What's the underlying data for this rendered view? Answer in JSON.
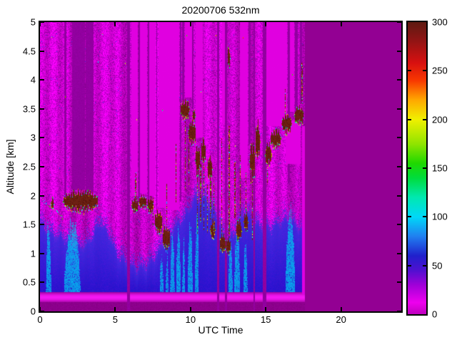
{
  "figure": {
    "background": "#ffffff"
  },
  "chart_data": {
    "type": "heatmap",
    "title": "20200706 532nm",
    "xlabel": "UTC Time",
    "ylabel": "Altitude [km]",
    "x_range": [
      0,
      24
    ],
    "x_ticks": [
      0,
      5,
      10,
      15,
      20
    ],
    "y_range": [
      0,
      5
    ],
    "y_ticks": [
      0,
      0.5,
      1,
      1.5,
      2,
      2.5,
      3,
      3.5,
      4,
      4.5,
      5
    ],
    "grid": false,
    "legend": "none",
    "colorbar": {
      "position": "right",
      "range": [
        0,
        300
      ],
      "ticks": [
        0,
        50,
        100,
        150,
        200,
        250,
        300
      ],
      "stops": [
        {
          "v": 0,
          "c": "#BE00BE"
        },
        {
          "v": 12,
          "c": "#EE00EE"
        },
        {
          "v": 30,
          "c": "#A000D8"
        },
        {
          "v": 45,
          "c": "#5010D0"
        },
        {
          "v": 60,
          "c": "#2020CC"
        },
        {
          "v": 80,
          "c": "#2080F0"
        },
        {
          "v": 100,
          "c": "#00D8F8"
        },
        {
          "v": 120,
          "c": "#00E8B0"
        },
        {
          "v": 140,
          "c": "#00DC3C"
        },
        {
          "v": 155,
          "c": "#20D800"
        },
        {
          "v": 175,
          "c": "#90E400"
        },
        {
          "v": 200,
          "c": "#F0F000"
        },
        {
          "v": 220,
          "c": "#FFA800"
        },
        {
          "v": 240,
          "c": "#F83800"
        },
        {
          "v": 258,
          "c": "#D81010"
        },
        {
          "v": 280,
          "c": "#941414"
        },
        {
          "v": 300,
          "c": "#5E1A12"
        }
      ]
    },
    "data_end_time": 17.58,
    "palette": {
      "no_data": "#930093",
      "noise_bright": "#E200E2",
      "noise_mid": "#C800D0",
      "noise_base": "#A400B0",
      "noise_dark": "#8E0098",
      "blue_speck": "#3C3CE6",
      "stripe_dark": "#9200A0",
      "stripe_bright": "#E000E0",
      "surface_dark": "#8C008C",
      "surface_bright": "#F516F5",
      "aerosol_deep": "#2010CC",
      "aerosol_mid": "#3C28DE",
      "aerosol_violet": "#8824DC",
      "plume_cyan": "#00C2F2",
      "cloud_main": "#6E2012",
      "cloud_dark": "#58160C",
      "edge_colors": [
        "#00E6FF",
        "#2BE000",
        "#CCF400",
        "#FFD800",
        "#FF5800",
        "#2A52FF",
        "#EE1000"
      ]
    },
    "surface_band": {
      "dark_top_km": 0.155,
      "bright_peak_km": 0.24,
      "band_top_km": 0.33
    },
    "aerosol_top_km": [
      [
        0,
        1.95
      ],
      [
        0.8,
        1.8
      ],
      [
        1.6,
        1.62
      ],
      [
        2.4,
        1.55
      ],
      [
        3.2,
        1.62
      ],
      [
        4.0,
        1.9
      ],
      [
        4.6,
        1.7
      ],
      [
        5.2,
        1.45
      ],
      [
        5.8,
        1.25
      ],
      [
        6.4,
        1.1
      ],
      [
        7.0,
        1.2
      ],
      [
        7.8,
        1.45
      ],
      [
        8.6,
        1.7
      ],
      [
        9.4,
        2.0
      ],
      [
        10.2,
        2.35
      ],
      [
        11.0,
        2.3
      ],
      [
        11.8,
        2.05
      ],
      [
        12.4,
        1.6
      ],
      [
        13.0,
        1.75
      ],
      [
        13.6,
        2.1
      ],
      [
        14.2,
        2.0
      ],
      [
        14.8,
        1.9
      ],
      [
        15.4,
        1.8
      ],
      [
        16.0,
        1.95
      ],
      [
        16.6,
        2.05
      ],
      [
        17.1,
        1.9
      ],
      [
        17.58,
        1.78
      ]
    ],
    "cyan_plumes": [
      [
        7.95,
        8.2,
        1.1
      ],
      [
        8.35,
        8.55,
        1.0
      ],
      [
        8.65,
        8.95,
        1.35
      ],
      [
        9.05,
        9.35,
        1.55
      ],
      [
        9.45,
        9.65,
        1.25
      ],
      [
        9.8,
        10.15,
        1.6
      ],
      [
        10.3,
        10.55,
        1.85
      ],
      [
        12.5,
        12.8,
        1.3
      ],
      [
        12.9,
        13.3,
        1.5
      ],
      [
        13.5,
        13.8,
        1.2
      ],
      [
        16.3,
        16.95,
        1.75
      ],
      [
        1.6,
        2.7,
        1.62
      ],
      [
        0.4,
        0.75,
        1.65
      ]
    ],
    "clouds": [
      [
        0.72,
        0.92,
        1.78,
        1.96
      ],
      [
        1.5,
        3.85,
        1.72,
        2.1
      ],
      [
        6.05,
        6.5,
        1.72,
        1.95
      ],
      [
        6.55,
        7.05,
        1.78,
        2.02
      ],
      [
        7.1,
        7.55,
        1.7,
        1.98
      ],
      [
        7.6,
        8.1,
        1.35,
        1.75
      ],
      [
        8.1,
        8.65,
        1.05,
        1.5
      ],
      [
        9.3,
        9.9,
        3.33,
        3.66
      ],
      [
        9.8,
        10.35,
        2.88,
        3.3
      ],
      [
        10.3,
        10.62,
        2.35,
        2.9
      ],
      [
        10.68,
        11.0,
        2.55,
        3.0
      ],
      [
        11.12,
        11.45,
        2.25,
        2.72
      ],
      [
        11.3,
        11.62,
        1.25,
        1.58
      ],
      [
        11.9,
        12.32,
        1.02,
        1.35
      ],
      [
        12.35,
        12.68,
        0.98,
        1.28
      ],
      [
        13.0,
        13.38,
        1.22,
        1.6
      ],
      [
        13.5,
        13.78,
        1.38,
        1.72
      ],
      [
        13.92,
        14.3,
        2.25,
        2.95
      ],
      [
        14.28,
        14.6,
        2.6,
        3.3
      ],
      [
        14.95,
        15.35,
        2.5,
        2.92
      ],
      [
        15.25,
        16.0,
        2.82,
        3.16
      ],
      [
        16.05,
        16.7,
        3.08,
        3.42
      ],
      [
        16.9,
        17.5,
        3.22,
        3.56
      ],
      [
        12.42,
        12.62,
        4.22,
        4.58
      ],
      [
        10.12,
        10.3,
        3.28,
        3.5
      ]
    ],
    "virga_streaks": [
      [
        7.5,
        1.5,
        2.0
      ],
      [
        9.62,
        2.1,
        3.3
      ],
      [
        10.45,
        1.35,
        2.35
      ],
      [
        10.62,
        1.55,
        2.55
      ],
      [
        10.85,
        1.4,
        2.55
      ],
      [
        11.1,
        1.35,
        2.2
      ],
      [
        11.52,
        1.35,
        2.25
      ],
      [
        12.05,
        1.35,
        3.0
      ],
      [
        12.52,
        1.28,
        3.2
      ],
      [
        12.9,
        1.6,
        2.6
      ],
      [
        13.3,
        1.6,
        2.7
      ],
      [
        14.1,
        1.25,
        2.25
      ],
      [
        15.1,
        2.2,
        2.5
      ],
      [
        16.28,
        3.42,
        3.85
      ],
      [
        17.38,
        3.6,
        4.3
      ],
      [
        6.3,
        1.95,
        2.4
      ],
      [
        8.4,
        1.5,
        2.2
      ],
      [
        9.0,
        1.9,
        2.9
      ],
      [
        9.85,
        2.2,
        2.9
      ],
      [
        11.3,
        1.6,
        2.25
      ],
      [
        13.65,
        1.75,
        2.4
      ]
    ],
    "dark_columns": [
      [
        1.6,
        1.74,
        1.95,
        5
      ],
      [
        2.15,
        3.0,
        2.1,
        5
      ],
      [
        3.05,
        3.55,
        2.05,
        5
      ],
      [
        5.8,
        6.0,
        0,
        5
      ],
      [
        6.55,
        6.63,
        1.9,
        5
      ],
      [
        7.15,
        7.24,
        1.9,
        5
      ],
      [
        7.72,
        7.8,
        1.7,
        5
      ],
      [
        9.3,
        9.4,
        1.9,
        5
      ],
      [
        9.45,
        9.58,
        3.65,
        5
      ],
      [
        10.12,
        10.22,
        3.5,
        5
      ],
      [
        11.78,
        11.9,
        0,
        5
      ],
      [
        12.3,
        12.42,
        0,
        5
      ],
      [
        13.85,
        13.97,
        2.9,
        5
      ],
      [
        14.18,
        14.3,
        0,
        5
      ],
      [
        14.82,
        15.04,
        0,
        5
      ],
      [
        16.45,
        16.6,
        2.2,
        5
      ],
      [
        16.95,
        17.1,
        2.6,
        5
      ],
      [
        17.25,
        17.42,
        3.6,
        5
      ]
    ],
    "bright_columns": [
      [
        6.08,
        6.5,
        2.0,
        5
      ],
      [
        6.66,
        7.12,
        2.05,
        5
      ],
      [
        7.28,
        7.68,
        2.0,
        5
      ],
      [
        7.85,
        8.28,
        1.8,
        5
      ],
      [
        8.3,
        9.25,
        1.75,
        5
      ],
      [
        9.62,
        10.08,
        3.7,
        5
      ],
      [
        10.35,
        10.82,
        3.0,
        5
      ],
      [
        12.08,
        12.28,
        3.25,
        5
      ],
      [
        13.28,
        13.82,
        2.3,
        5
      ],
      [
        15.05,
        16.42,
        3.2,
        5
      ],
      [
        16.3,
        17.3,
        2.55,
        3.3
      ],
      [
        16.62,
        16.88,
        3.45,
        5
      ],
      [
        17.42,
        17.58,
        0.3,
        3.2
      ]
    ],
    "edge_speck_ranges": [
      [
        0.12,
        1.45
      ]
    ]
  }
}
